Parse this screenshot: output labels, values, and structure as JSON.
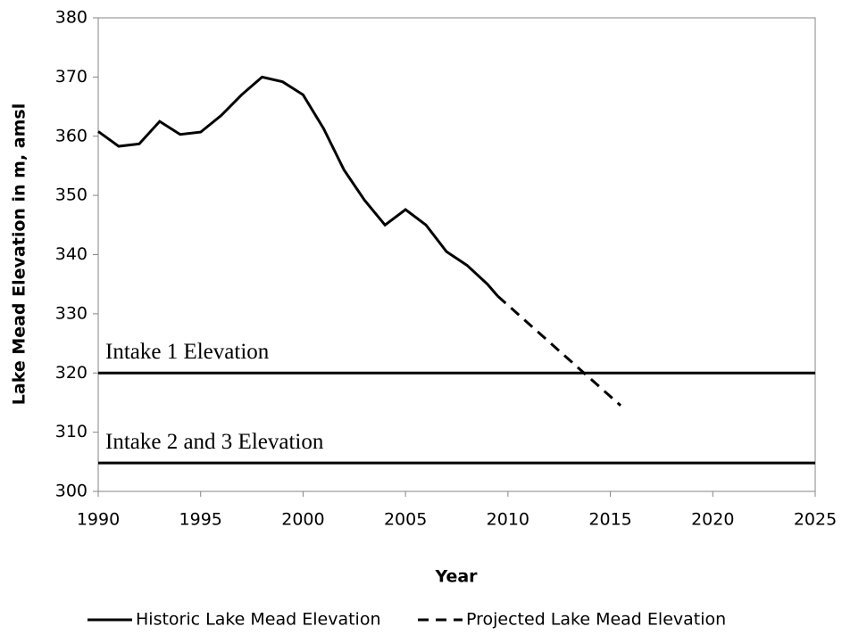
{
  "chart_data": {
    "type": "line",
    "xlabel": "Year",
    "ylabel": "Lake Mead Elevation in m, amsl",
    "xlim": [
      1990,
      2025
    ],
    "xticks": [
      1990,
      1995,
      2000,
      2005,
      2010,
      2015,
      2020,
      2025
    ],
    "ylim": [
      300,
      380
    ],
    "yticks": [
      300,
      310,
      320,
      330,
      340,
      350,
      360,
      370,
      380
    ],
    "series": [
      {
        "name": "Historic Lake Mead Elevation",
        "color": "#000000",
        "style": "solid",
        "x": [
          1990,
          1991,
          1992,
          1993,
          1994,
          1995,
          1996,
          1997,
          1998,
          1999,
          2000,
          2001,
          2002,
          2003,
          2004,
          2005,
          2006,
          2007,
          2008,
          2009,
          2009.5
        ],
        "values": [
          360.8,
          358.3,
          358.7,
          362.5,
          360.3,
          360.7,
          363.5,
          367,
          370,
          369.2,
          367,
          361.3,
          354.3,
          349.2,
          345,
          347.6,
          345,
          340.5,
          338.2,
          335,
          333
        ]
      },
      {
        "name": "Projected Lake Mead Elevation",
        "color": "#000000",
        "style": "dashed",
        "x": [
          2009.5,
          2015.5
        ],
        "values": [
          333,
          314.5
        ]
      }
    ],
    "reference_lines": [
      {
        "label": "Intake 1 Elevation",
        "value": 320
      },
      {
        "label": "Intake 2 and 3 Elevation",
        "value": 304.8
      }
    ],
    "legend": "bottom"
  }
}
